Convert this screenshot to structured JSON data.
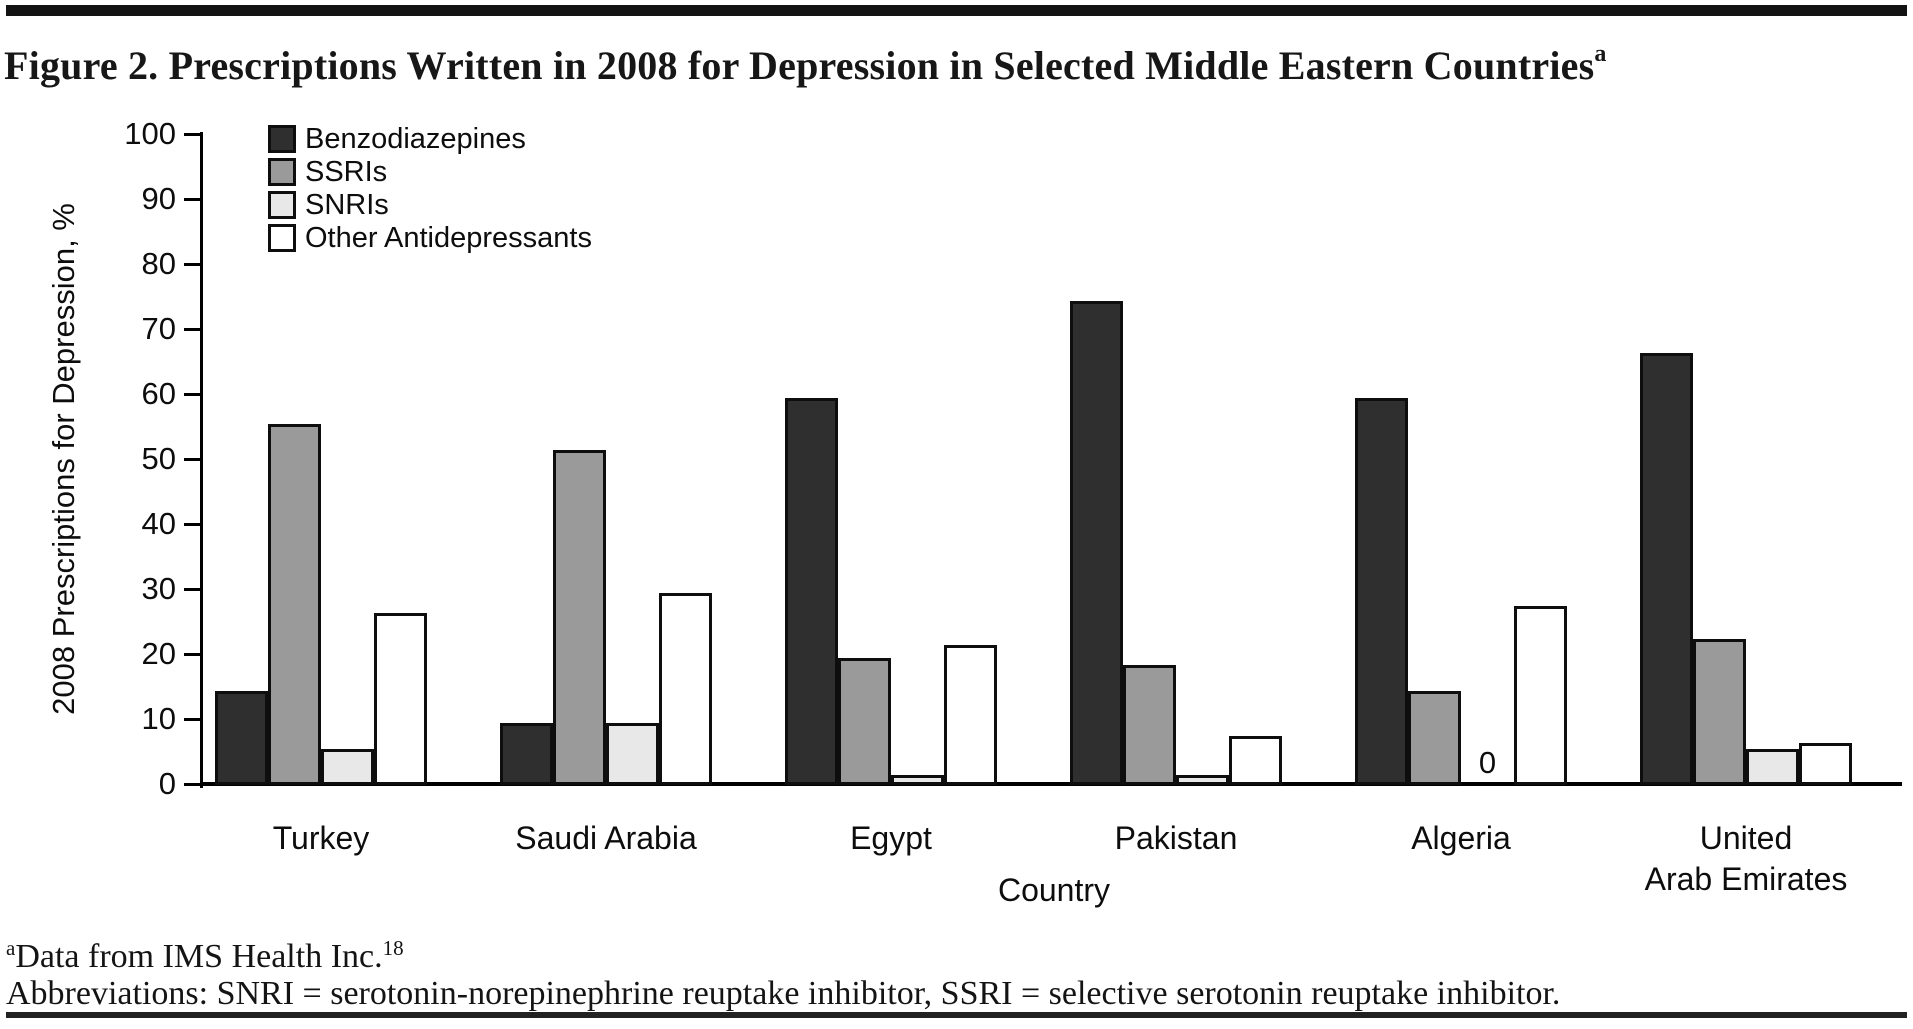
{
  "figure": {
    "title": "Figure 2. Prescriptions Written in 2008 for Depression in Selected Middle Eastern Countries",
    "title_superscript": "a",
    "footnote_superscript": "a",
    "footnote_text": "Data from IMS Health Inc.",
    "footnote_ref": "18",
    "abbreviations": "Abbreviations: SNRI = serotonin-norepinephrine reuptake inhibitor, SSRI = selective serotonin reuptake inhibitor."
  },
  "chart_data": {
    "type": "bar",
    "title": "",
    "xlabel": "Country",
    "ylabel": "2008 Prescriptions for Depression, %",
    "ylim": [
      0,
      100
    ],
    "ytick_step": 10,
    "grid": false,
    "legend_position": "top-left-inside",
    "categories": [
      "Turkey",
      "Saudi Arabia",
      "Egypt",
      "Pakistan",
      "Algeria",
      "United Arab Emirates"
    ],
    "category_display_lines": [
      [
        "Turkey"
      ],
      [
        "Saudi Arabia"
      ],
      [
        "Egypt"
      ],
      [
        "Pakistan"
      ],
      [
        "Algeria"
      ],
      [
        "United",
        "Arab Emirates"
      ]
    ],
    "series": [
      {
        "name": "Benzodiazepines",
        "color": "#302f2f",
        "values": [
          14,
          9,
          59,
          74,
          59,
          66
        ]
      },
      {
        "name": "SSRIs",
        "color": "#9a9a9a",
        "values": [
          55,
          51,
          19,
          18,
          14,
          22
        ]
      },
      {
        "name": "SNRIs",
        "color": "#e8e8e8",
        "values": [
          5,
          9,
          1,
          1,
          0,
          5
        ]
      },
      {
        "name": "Other Antidepressants",
        "color": "#ffffff",
        "values": [
          26,
          29,
          21,
          7,
          27,
          6
        ]
      }
    ],
    "zero_value_label": {
      "category": "Algeria",
      "series": "SNRIs",
      "text": "0"
    },
    "bar_border_color": "#0e0e0e",
    "axis_color": "#000000"
  }
}
